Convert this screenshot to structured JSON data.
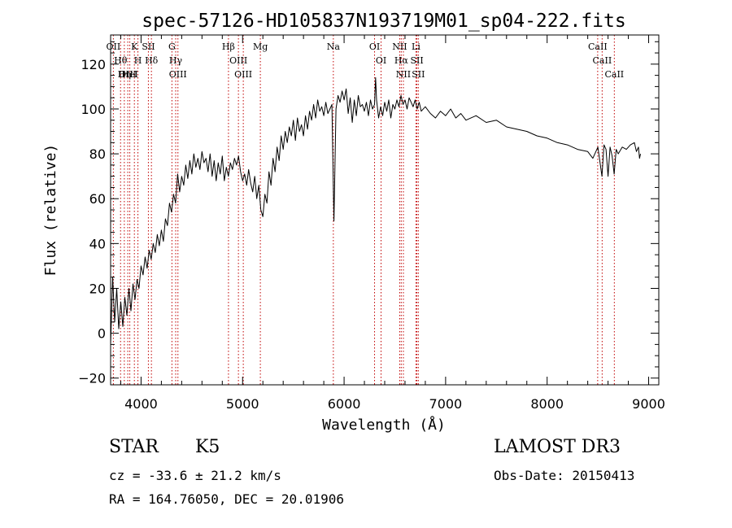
{
  "chart_data": {
    "type": "line",
    "title": "spec-57126-HD105837N193719M01_sp04-222.fits",
    "xlabel": "Wavelength (Å)",
    "ylabel": "Flux (relative)",
    "xlim": [
      3700,
      9100
    ],
    "ylim": [
      -23,
      133
    ],
    "xticks": [
      4000,
      5000,
      6000,
      7000,
      8000,
      9000
    ],
    "yticks": [
      -20,
      0,
      20,
      40,
      60,
      80,
      100,
      120
    ],
    "grid": false,
    "series": [
      {
        "name": "spectrum",
        "x": [
          3700,
          3720,
          3740,
          3760,
          3780,
          3800,
          3820,
          3840,
          3860,
          3880,
          3900,
          3920,
          3940,
          3960,
          3980,
          4000,
          4020,
          4040,
          4060,
          4080,
          4100,
          4120,
          4140,
          4160,
          4180,
          4200,
          4220,
          4240,
          4260,
          4280,
          4300,
          4320,
          4340,
          4360,
          4380,
          4400,
          4420,
          4440,
          4460,
          4480,
          4500,
          4520,
          4540,
          4560,
          4580,
          4600,
          4620,
          4640,
          4660,
          4680,
          4700,
          4720,
          4740,
          4760,
          4780,
          4800,
          4820,
          4840,
          4860,
          4880,
          4900,
          4920,
          4940,
          4960,
          4980,
          5000,
          5020,
          5040,
          5060,
          5080,
          5100,
          5120,
          5140,
          5160,
          5180,
          5200,
          5220,
          5240,
          5260,
          5280,
          5300,
          5320,
          5340,
          5360,
          5380,
          5400,
          5420,
          5440,
          5460,
          5480,
          5500,
          5520,
          5540,
          5560,
          5580,
          5600,
          5620,
          5640,
          5660,
          5680,
          5700,
          5720,
          5740,
          5760,
          5780,
          5800,
          5820,
          5840,
          5860,
          5880,
          5895,
          5900,
          5920,
          5940,
          5960,
          5980,
          6000,
          6020,
          6040,
          6060,
          6080,
          6100,
          6120,
          6140,
          6160,
          6180,
          6200,
          6220,
          6240,
          6260,
          6280,
          6300,
          6310,
          6320,
          6340,
          6360,
          6380,
          6400,
          6420,
          6440,
          6460,
          6480,
          6500,
          6520,
          6540,
          6560,
          6580,
          6600,
          6620,
          6640,
          6660,
          6680,
          6700,
          6720,
          6740,
          6760,
          6800,
          6850,
          6900,
          6950,
          7000,
          7050,
          7100,
          7150,
          7200,
          7300,
          7400,
          7500,
          7600,
          7700,
          7800,
          7900,
          8000,
          8100,
          8200,
          8300,
          8400,
          8450,
          8500,
          8540,
          8560,
          8580,
          8600,
          8620,
          8640,
          8660,
          8680,
          8700,
          8740,
          8780,
          8820,
          8860,
          8880,
          8900,
          8910,
          8920
        ],
        "y": [
          -5,
          25,
          5,
          20,
          2,
          14,
          3,
          16,
          8,
          20,
          10,
          22,
          15,
          24,
          20,
          30,
          26,
          34,
          29,
          37,
          33,
          40,
          36,
          44,
          39,
          46,
          41,
          51,
          48,
          58,
          54,
          62,
          58,
          71,
          63,
          70,
          66,
          75,
          69,
          77,
          71,
          80,
          74,
          78,
          73,
          81,
          76,
          78,
          72,
          80,
          70,
          77,
          68,
          76,
          71,
          79,
          68,
          74,
          70,
          76,
          73,
          78,
          75,
          79,
          72,
          68,
          71,
          66,
          73,
          67,
          63,
          70,
          60,
          66,
          55,
          52,
          62,
          58,
          72,
          66,
          78,
          72,
          83,
          77,
          88,
          82,
          90,
          85,
          92,
          88,
          95,
          86,
          96,
          90,
          93,
          88,
          97,
          91,
          99,
          95,
          102,
          96,
          104,
          99,
          101,
          97,
          103,
          98,
          100,
          102,
          62,
          50,
          100,
          106,
          103,
          108,
          104,
          109,
          98,
          105,
          94,
          104,
          97,
          106,
          101,
          102,
          99,
          103,
          97,
          104,
          100,
          102,
          114,
          104,
          96,
          101,
          97,
          103,
          99,
          104,
          96,
          102,
          100,
          104,
          101,
          106,
          102,
          104,
          100,
          105,
          103,
          101,
          104,
          100,
          103,
          99,
          101,
          98,
          96,
          99,
          97,
          100,
          96,
          98,
          95,
          97,
          94,
          95,
          92,
          91,
          90,
          88,
          87,
          85,
          84,
          82,
          81,
          78,
          83,
          70,
          84,
          82,
          70,
          83,
          79,
          71,
          82,
          80,
          83,
          82,
          84,
          85,
          81,
          83,
          78,
          80
        ]
      }
    ],
    "lines": [
      {
        "label": "Hθ",
        "x": 3798
      },
      {
        "label": "OII",
        "x": 3727
      },
      {
        "label": "OIII",
        "x": 3869
      },
      {
        "label": "HeI",
        "x": 3889
      },
      {
        "label": "K",
        "x": 3934
      },
      {
        "label": "H",
        "x": 3969
      },
      {
        "label": "Hη",
        "x": 3835
      },
      {
        "label": "Hδ",
        "x": 4102
      },
      {
        "label": "SII",
        "x": 4072
      },
      {
        "label": "OIII",
        "x": 4363
      },
      {
        "label": "Hγ",
        "x": 4341
      },
      {
        "label": "G",
        "x": 4304
      },
      {
        "label": "Hβ",
        "x": 4861
      },
      {
        "label": "OIII",
        "x": 5007
      },
      {
        "label": "OIII",
        "x": 4959
      },
      {
        "label": "Mg",
        "x": 5175
      },
      {
        "label": "Na",
        "x": 5894
      },
      {
        "label": "OI",
        "x": 6300
      },
      {
        "label": "OI",
        "x": 6364
      },
      {
        "label": "Hα",
        "x": 6563
      },
      {
        "label": "NII",
        "x": 6548
      },
      {
        "label": "NII",
        "x": 6584
      },
      {
        "label": "SII",
        "x": 6717
      },
      {
        "label": "SII",
        "x": 6731
      },
      {
        "label": "Li",
        "x": 6708
      },
      {
        "label": "CaII",
        "x": 8498
      },
      {
        "label": "CaII",
        "x": 8542
      },
      {
        "label": "CaII",
        "x": 8662
      }
    ]
  },
  "info": {
    "class": "STAR",
    "subclass": "K5",
    "survey": "LAMOST DR3",
    "cz": "cz = -33.6 ± 21.2 km/s",
    "obs_date": "Obs-Date: 20150413",
    "radec": "RA = 164.76050, DEC =  20.01906"
  },
  "colors": {
    "spectrum": "#000000",
    "line_markers": "#c00000"
  }
}
